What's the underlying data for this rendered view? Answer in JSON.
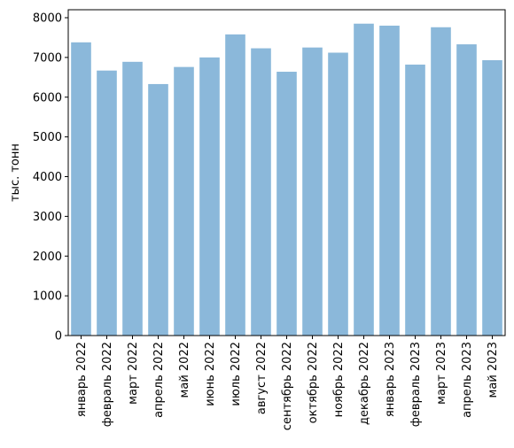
{
  "chart_data": {
    "type": "bar",
    "title": "",
    "xlabel": "",
    "ylabel": "тыс. тонн",
    "ylim": [
      0,
      8000
    ],
    "yticks": [
      0,
      1000,
      2000,
      3000,
      4000,
      5000,
      6000,
      7000,
      8000
    ],
    "bar_color": "#8bb8da",
    "grid": false,
    "categories": [
      "январь 2022",
      "февраль 2022",
      "март 2022",
      "апрель 2022",
      "май 2022",
      "июнь 2022",
      "июль 2022",
      "август 2022",
      "сентябрь 2022",
      "октябрь 2022",
      "ноябрь 2022",
      "декабрь 2022",
      "январь 2023",
      "февраль 2023",
      "март 2023",
      "апрель 2023",
      "май 2023"
    ],
    "values": [
      7380,
      6670,
      6890,
      6330,
      6760,
      7000,
      7580,
      7230,
      6640,
      7250,
      7120,
      7850,
      7800,
      6820,
      7760,
      7330,
      6930
    ]
  }
}
